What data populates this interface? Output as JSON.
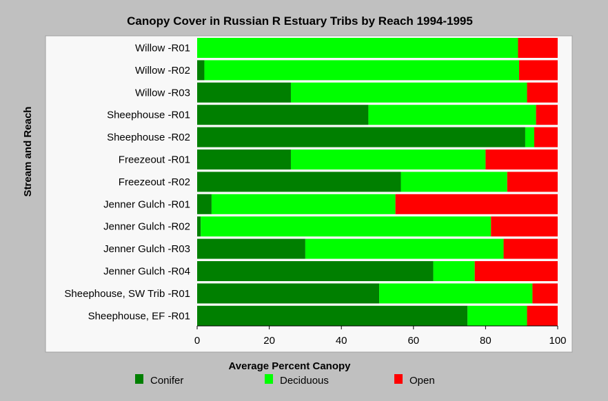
{
  "chart_data": {
    "type": "bar",
    "orientation": "horizontal",
    "stacked": true,
    "title": "Canopy Cover in Russian R Estuary Tribs by Reach 1994-1995",
    "xlabel": "Average Percent Canopy",
    "ylabel": "Stream and Reach",
    "xlim": [
      0,
      100
    ],
    "xticks": [
      0,
      20,
      40,
      60,
      80,
      100
    ],
    "grid": false,
    "legend_position": "bottom",
    "categories": [
      "Willow -R01",
      "Willow -R02",
      "Willow -R03",
      "Sheephouse -R01",
      "Sheephouse -R02",
      "Freezeout -R01",
      "Freezeout -R02",
      "Jenner Gulch -R01",
      "Jenner Gulch -R02",
      "Jenner Gulch -R03",
      "Jenner Gulch -R04",
      "Sheephouse, SW Trib -R01",
      "Sheephouse, EF -R01"
    ],
    "series": [
      {
        "name": "Conifer",
        "color": "#007f00",
        "values": [
          0,
          2,
          26,
          47.5,
          91,
          26,
          56.5,
          4,
          1,
          30,
          65.5,
          50.5,
          75
        ]
      },
      {
        "name": "Deciduous",
        "color": "#00ff00",
        "values": [
          89,
          87.3,
          65.5,
          46.5,
          2.5,
          54,
          29.5,
          51,
          80.5,
          55,
          11.5,
          42.5,
          16.5
        ]
      },
      {
        "name": "Open",
        "color": "#ff0000",
        "values": [
          11,
          10.7,
          8.5,
          6,
          6.5,
          20,
          14,
          45,
          18.5,
          15,
          23,
          7,
          8.5
        ]
      }
    ]
  }
}
